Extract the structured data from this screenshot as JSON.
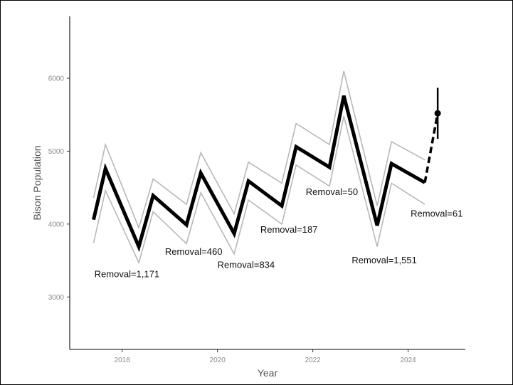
{
  "chart_data": {
    "type": "line",
    "xlabel": "Year",
    "ylabel": "Bison Population",
    "xlim": [
      2016.9,
      2025.2
    ],
    "ylim": [
      2280,
      6850
    ],
    "x_ticks": [
      2018,
      2020,
      2022,
      2024
    ],
    "y_ticks": [
      3000,
      4000,
      5000,
      6000
    ],
    "grid": false,
    "series": [
      {
        "role": "estimate",
        "x": [
          2017.4,
          2017.65,
          2018.35,
          2018.65,
          2019.35,
          2019.65,
          2020.35,
          2020.65,
          2021.35,
          2021.65,
          2022.35,
          2022.65,
          2023.35,
          2023.65,
          2024.35
        ],
        "values": [
          4060,
          4760,
          3690,
          4390,
          3990,
          4700,
          3870,
          4590,
          4250,
          5060,
          4780,
          5760,
          3980,
          4830,
          4570
        ]
      },
      {
        "role": "upper-bound",
        "x": [
          2017.4,
          2017.65,
          2018.35,
          2018.65,
          2019.35,
          2019.65,
          2020.35,
          2020.65,
          2021.35,
          2021.65,
          2022.35,
          2022.65,
          2023.35,
          2023.65,
          2024.35
        ],
        "values": [
          4360,
          5090,
          3950,
          4620,
          4270,
          4980,
          4140,
          4850,
          4560,
          5380,
          5090,
          6100,
          4250,
          5130,
          4880
        ]
      },
      {
        "role": "lower-bound",
        "x": [
          2017.4,
          2017.65,
          2018.35,
          2018.65,
          2019.35,
          2019.65,
          2020.35,
          2020.65,
          2021.35,
          2021.65,
          2022.35,
          2022.65,
          2023.35,
          2023.65,
          2024.35
        ],
        "values": [
          3740,
          4460,
          3470,
          4170,
          3730,
          4430,
          3590,
          4330,
          4000,
          4810,
          4520,
          5480,
          3690,
          4560,
          4270
        ]
      }
    ],
    "projection": {
      "x": [
        2024.35,
        2024.62
      ],
      "values": [
        4570,
        5520
      ],
      "point": {
        "x": 2024.62,
        "y": 5520,
        "lower": 5170,
        "upper": 5870
      }
    },
    "annotations": [
      {
        "text": "Removal=1,171",
        "x": 2018.1,
        "y": 3270
      },
      {
        "text": "Removal=460",
        "x": 2019.5,
        "y": 3580
      },
      {
        "text": "Removal=834",
        "x": 2020.6,
        "y": 3400
      },
      {
        "text": "Removal=187",
        "x": 2021.5,
        "y": 3880
      },
      {
        "text": "Removal=50",
        "x": 2022.4,
        "y": 4400
      },
      {
        "text": "Removal=1,551",
        "x": 2023.5,
        "y": 3460
      },
      {
        "text": "Removal=61",
        "x": 2024.6,
        "y": 4100
      }
    ]
  }
}
